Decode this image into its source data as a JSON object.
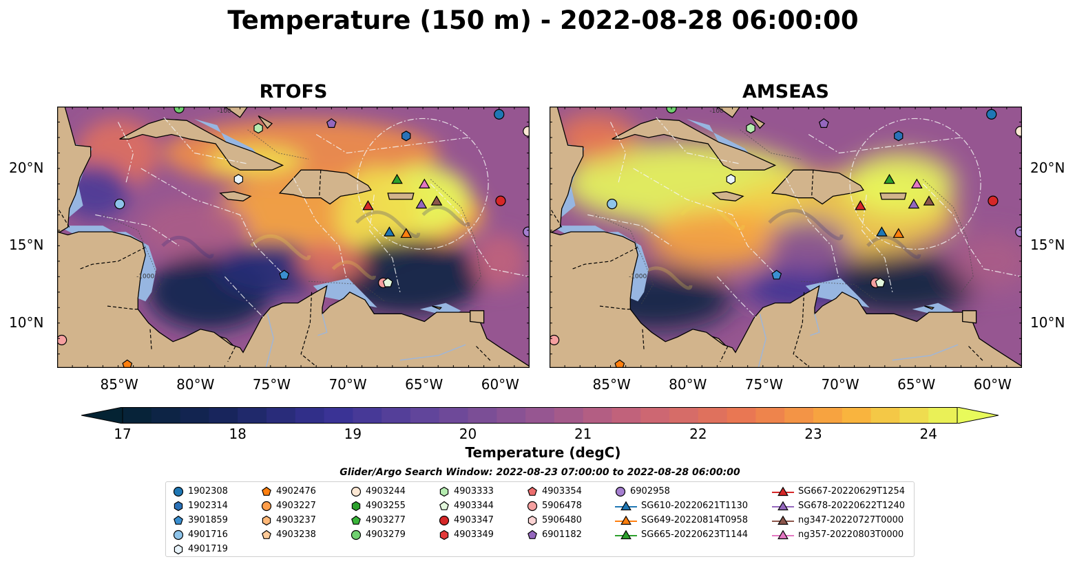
{
  "title": "Temperature (150 m) - 2022-08-28 06:00:00",
  "panels": [
    {
      "title": "RTOFS"
    },
    {
      "title": "AMSEAS"
    }
  ],
  "axes": {
    "x_ticks": [
      "85°W",
      "80°W",
      "75°W",
      "70°W",
      "65°W",
      "60°W"
    ],
    "y_ticks": [
      "20°N",
      "15°N",
      "10°N"
    ]
  },
  "colorbar": {
    "label": "Temperature (degC)",
    "ticks": [
      "17",
      "18",
      "19",
      "20",
      "21",
      "22",
      "23",
      "24"
    ],
    "range": [
      16.75,
      24.5
    ],
    "step": 0.25,
    "colormap": "thermal",
    "extend": "both"
  },
  "contour_labels": [
    "-1000",
    "-100"
  ],
  "legend": {
    "window_text": "Glider/Argo Search Window: 2022-08-23 07:00:00 to 2022-08-28 06:00:00",
    "items": [
      {
        "label": "1902308",
        "marker": "circle",
        "color": "#1f77b4"
      },
      {
        "label": "1902314",
        "marker": "hexagon",
        "color": "#2b72b8"
      },
      {
        "label": "3901859",
        "marker": "pentagon",
        "color": "#3b8fd0"
      },
      {
        "label": "4901716",
        "marker": "circle",
        "color": "#8ec4ea"
      },
      {
        "label": "4901719",
        "marker": "hexagon",
        "color": "#e9f4fb"
      },
      {
        "label": "4902476",
        "marker": "pentagon",
        "color": "#ff7f0e"
      },
      {
        "label": "4903227",
        "marker": "circle",
        "color": "#ff9e4a"
      },
      {
        "label": "4903237",
        "marker": "hexagon",
        "color": "#ffb878"
      },
      {
        "label": "4903238",
        "marker": "pentagon",
        "color": "#ffcb99"
      },
      {
        "label": "4903244",
        "marker": "circle",
        "color": "#fde8d4"
      },
      {
        "label": "4903255",
        "marker": "hexagon",
        "color": "#2ca02c"
      },
      {
        "label": "4903277",
        "marker": "pentagon",
        "color": "#3ab53a"
      },
      {
        "label": "4903279",
        "marker": "circle",
        "color": "#70d070"
      },
      {
        "label": "4903333",
        "marker": "hexagon",
        "color": "#b5ecb0"
      },
      {
        "label": "4903344",
        "marker": "pentagon",
        "color": "#e2f7dc"
      },
      {
        "label": "4903347",
        "marker": "circle",
        "color": "#d62728"
      },
      {
        "label": "4903349",
        "marker": "hexagon",
        "color": "#e33a3a"
      },
      {
        "label": "4903354",
        "marker": "pentagon",
        "color": "#ec6e6e"
      },
      {
        "label": "5906478",
        "marker": "circle",
        "color": "#f5a0a0"
      },
      {
        "label": "5906480",
        "marker": "hexagon",
        "color": "#fbd4d4"
      },
      {
        "label": "6901182",
        "marker": "pentagon",
        "color": "#9467bd"
      },
      {
        "label": "6902958",
        "marker": "circle",
        "color": "#a57fd0"
      },
      {
        "label": "SG610-20220621T1130",
        "marker": "triangle",
        "color": "#1f77b4"
      },
      {
        "label": "SG649-20220814T0958",
        "marker": "triangle",
        "color": "#ff7f0e"
      },
      {
        "label": "SG665-20220623T1144",
        "marker": "triangle",
        "color": "#2ca02c"
      },
      {
        "label": "SG667-20220629T1254",
        "marker": "triangle",
        "color": "#d62728"
      },
      {
        "label": "SG678-20220622T1240",
        "marker": "triangle",
        "color": "#9467bd"
      },
      {
        "label": "ng347-20220727T0000",
        "marker": "triangle",
        "color": "#8c564b"
      },
      {
        "label": "ng357-20220803T0000",
        "marker": "triangle",
        "color": "#e377c2"
      }
    ]
  },
  "colors": {
    "land": "#d2b48c",
    "shallow_water": "#97b6e1",
    "cold": "#04222c",
    "warm": "#e8fa5b"
  }
}
